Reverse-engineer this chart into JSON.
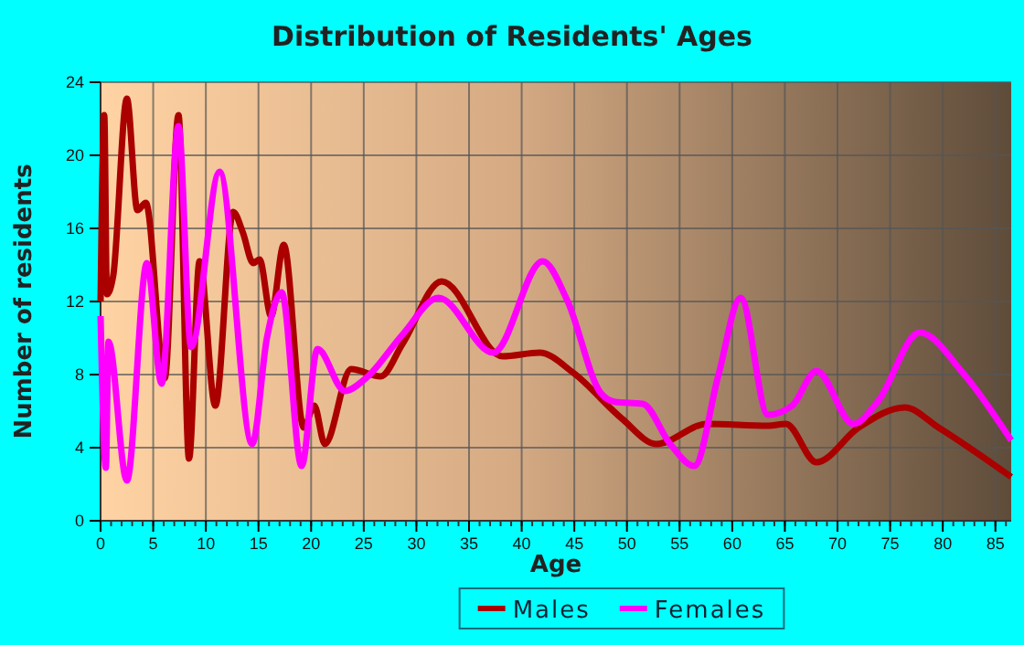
{
  "chart_data": {
    "type": "line",
    "title": "Distribution of Residents' Ages",
    "xlabel": "Age",
    "ylabel": "Number of residents",
    "xlim": [
      0,
      86.5
    ],
    "xticks": [
      0,
      5,
      10,
      15,
      20,
      25,
      30,
      35,
      40,
      45,
      50,
      55,
      60,
      65,
      70,
      75,
      80,
      85
    ],
    "ylim": [
      0,
      24
    ],
    "yticks": [
      0,
      4,
      8,
      12,
      16,
      20,
      24
    ],
    "grid": true,
    "legend": "bottom",
    "line_style": "solid",
    "series": [
      {
        "name": "Males",
        "color": "#aa0000",
        "x": [
          0,
          0.35,
          0.6,
          1.2,
          2.5,
          3.5,
          4.3,
          6.1,
          7.4,
          8.4,
          9.4,
          10.9,
          12.6,
          13.5,
          14.5,
          15.1,
          16.2,
          17.4,
          19.3,
          20.3,
          21.3,
          23.8,
          26.6,
          28.7,
          32.4,
          38.2,
          41.7,
          44.9,
          49.5,
          52.8,
          57.6,
          63.4,
          65.1,
          68,
          72,
          76.4,
          79.6,
          86.5
        ],
        "values": [
          12,
          22.2,
          12.4,
          13.4,
          23.1,
          17,
          17.4,
          7.8,
          22.2,
          3.4,
          14.2,
          6.3,
          16.9,
          15.8,
          14.1,
          14.3,
          11.2,
          15.1,
          5.1,
          6.3,
          4.2,
          8.3,
          7.9,
          9.7,
          13.1,
          9,
          9.2,
          8.1,
          5.6,
          4.2,
          5.3,
          5.2,
          5.3,
          3.2,
          5.1,
          6.2,
          5.1,
          2.4
        ]
      },
      {
        "name": "Females",
        "color": "#ff00ff",
        "x": [
          0,
          0.5,
          0.75,
          2.5,
          4.4,
          5.8,
          7.4,
          8.6,
          11.3,
          14.4,
          15.8,
          17.2,
          19.1,
          20.6,
          23.2,
          25.2,
          28.7,
          32.1,
          37.3,
          42,
          44.3,
          47.5,
          48.9,
          51.5,
          54.1,
          56.4,
          58.7,
          60.8,
          63.4,
          65.7,
          68,
          71.5,
          73.8,
          77.8,
          81.9,
          86.5
        ],
        "values": [
          11.2,
          2.9,
          9.8,
          2.2,
          14.1,
          7.5,
          21.6,
          9.5,
          19.1,
          4.2,
          10,
          12.5,
          3,
          9.4,
          7.1,
          7.8,
          10.2,
          12.2,
          9.2,
          14.2,
          12.1,
          7,
          6.5,
          6.4,
          4.2,
          3,
          8,
          12.2,
          5.8,
          6.3,
          8.2,
          5.3,
          6.5,
          10.3,
          8.1,
          4.4
        ]
      }
    ]
  }
}
